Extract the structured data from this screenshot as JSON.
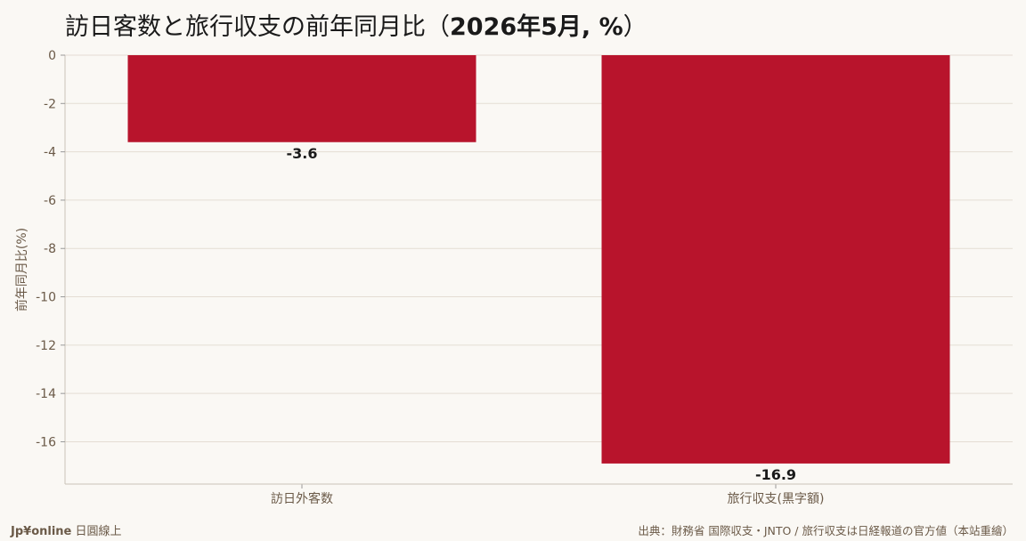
{
  "title_main": "訪日客数と旅行収支の前年同月比（",
  "title_bold": "2026年5月, %",
  "title_end": "）",
  "footer": {
    "brand": "Jp¥online",
    "brand_suffix": "日圓線上",
    "source": "出典：財務省 国際収支・JNTO / 旅行収支は日経報道の官方値（本站重繪）"
  },
  "colors": {
    "bar": "#b8142c",
    "grid": "#e4ddd3",
    "axis_text": "#6b5a48",
    "label_text": "#1a1a1a"
  },
  "chart_data": {
    "type": "bar",
    "categories": [
      "訪日外客数",
      "旅行収支(黒字額)"
    ],
    "values": [
      -3.6,
      -16.9
    ],
    "data_labels": [
      "-3.6",
      "-16.9"
    ],
    "ylabel": "前年同月比(%)",
    "xlabel": "",
    "ylim": [
      -17.75,
      0
    ],
    "yticks": [
      0,
      -2,
      -4,
      -6,
      -8,
      -10,
      -12,
      -14,
      -16
    ],
    "ytick_labels": [
      "0",
      "-2",
      "-4",
      "-6",
      "-8",
      "-10",
      "-12",
      "-14",
      "-16"
    ],
    "grid": true,
    "legend": "none"
  }
}
